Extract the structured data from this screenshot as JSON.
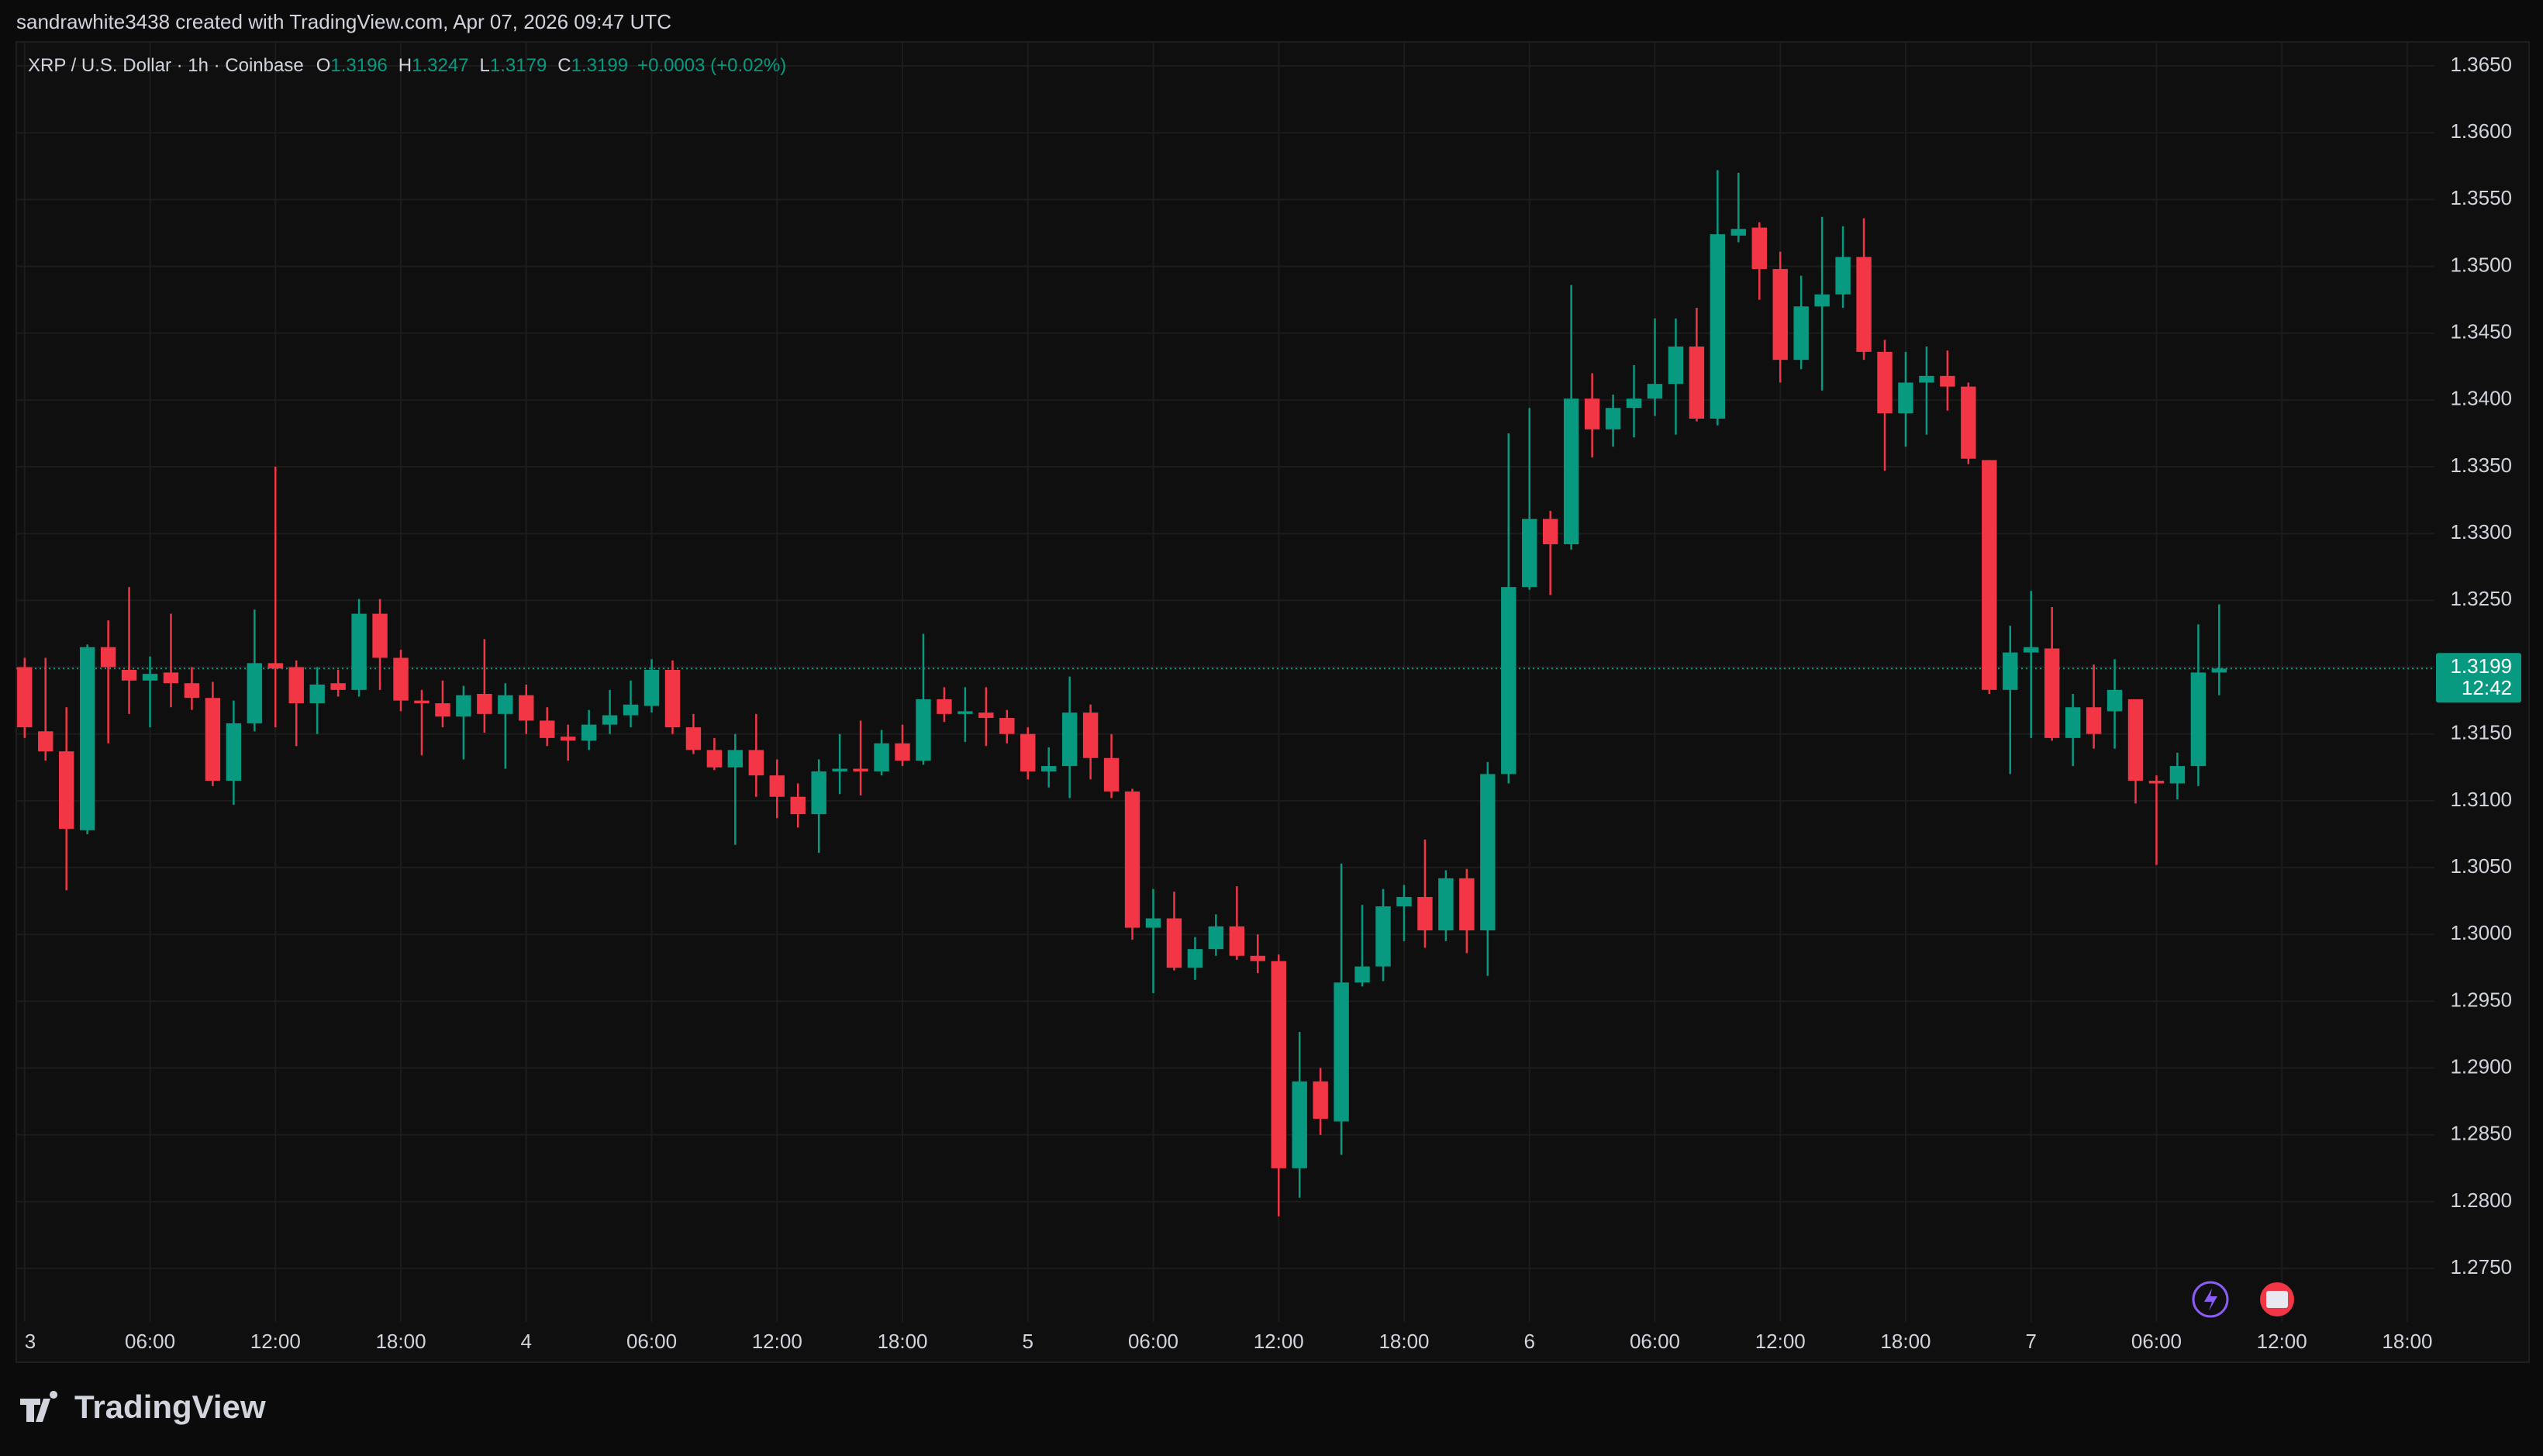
{
  "header": {
    "attribution": "sandrawhite3438 created with TradingView.com, Apr 07, 2026 09:47 UTC"
  },
  "footer": {
    "logo": "TradingView"
  },
  "chart_data": {
    "type": "candlestick",
    "title": "XRP / U.S. Dollar · 1h · Coinbase",
    "legend_items": [
      {
        "key": "O",
        "value": "1.3196"
      },
      {
        "key": "H",
        "value": "1.3247"
      },
      {
        "key": "L",
        "value": "1.3179"
      },
      {
        "key": "C",
        "value": "1.3199"
      }
    ],
    "change": "+0.0003 (+0.02%)",
    "up_color": "#089981",
    "down_color": "#f23645",
    "grid": true,
    "last_price": {
      "value": 1.3199,
      "label": "1.3199",
      "countdown": "12:42"
    },
    "x": [
      0,
      1,
      2,
      3,
      4,
      5,
      6,
      7,
      8,
      9,
      10,
      11,
      12,
      13,
      14,
      15,
      16,
      17,
      18,
      19,
      20,
      21,
      22,
      23,
      24,
      25,
      26,
      27,
      28,
      29,
      30,
      31,
      32,
      33,
      34,
      35,
      36,
      37,
      38,
      39,
      40,
      41,
      42,
      43,
      44,
      45,
      46,
      47,
      48,
      49,
      50,
      51,
      52,
      53,
      54,
      55,
      56,
      57,
      58,
      59,
      60,
      61,
      62,
      63,
      64,
      65,
      66,
      67,
      68,
      69,
      70,
      71,
      72,
      73,
      74,
      75,
      76,
      77,
      78,
      79,
      80,
      81,
      82,
      83,
      84,
      85,
      86,
      87,
      88,
      89,
      90,
      91,
      92,
      93,
      94,
      95,
      96,
      97,
      98,
      99,
      100,
      101,
      102,
      103,
      104,
      105
    ],
    "open": [
      1.32,
      1.3152,
      1.3137,
      1.3078,
      1.3215,
      1.3198,
      1.319,
      1.3196,
      1.3188,
      1.3177,
      1.3115,
      1.3158,
      1.3203,
      1.32,
      1.3173,
      1.3188,
      1.3183,
      1.324,
      1.3207,
      1.3175,
      1.3173,
      1.3163,
      1.318,
      1.3165,
      1.3179,
      1.316,
      1.3148,
      1.3145,
      1.3157,
      1.3164,
      1.3171,
      1.3198,
      1.3155,
      1.3138,
      1.3125,
      1.3138,
      1.3119,
      1.3103,
      1.309,
      1.3122,
      1.3124,
      1.3122,
      1.3143,
      1.313,
      1.3176,
      1.3165,
      1.3166,
      1.3162,
      1.315,
      1.3122,
      1.3126,
      1.3166,
      1.3132,
      1.3107,
      1.3005,
      1.3012,
      1.2975,
      1.2989,
      1.3006,
      1.2984,
      1.298,
      1.2825,
      1.289,
      1.286,
      1.2964,
      1.2976,
      1.3021,
      1.3028,
      1.3003,
      1.3042,
      1.3003,
      1.312,
      1.326,
      1.3311,
      1.3292,
      1.3401,
      1.3378,
      1.3394,
      1.3401,
      1.3412,
      1.344,
      1.3386,
      1.3523,
      1.3529,
      1.3498,
      1.343,
      1.347,
      1.3479,
      1.3507,
      1.3436,
      1.339,
      1.3413,
      1.3418,
      1.341,
      1.3355,
      1.3183,
      1.3211,
      1.3214,
      1.3147,
      1.317,
      1.3167,
      1.3176,
      1.3115,
      1.3113,
      1.3126,
      1.3196
    ],
    "high": [
      1.3207,
      1.3207,
      1.317,
      1.3217,
      1.3235,
      1.326,
      1.3208,
      1.324,
      1.32,
      1.3189,
      1.3175,
      1.3243,
      1.335,
      1.3205,
      1.32,
      1.3198,
      1.3251,
      1.3251,
      1.3213,
      1.3183,
      1.319,
      1.3186,
      1.3221,
      1.3188,
      1.3187,
      1.317,
      1.3157,
      1.3168,
      1.3183,
      1.319,
      1.3206,
      1.3205,
      1.3165,
      1.3147,
      1.315,
      1.3165,
      1.3131,
      1.3113,
      1.3131,
      1.315,
      1.316,
      1.3153,
      1.3157,
      1.3225,
      1.3185,
      1.3185,
      1.3185,
      1.3168,
      1.3155,
      1.314,
      1.3193,
      1.3172,
      1.315,
      1.3109,
      1.3034,
      1.3032,
      1.2998,
      1.3015,
      1.3036,
      1.3,
      1.2985,
      1.2927,
      1.29,
      1.3053,
      1.3022,
      1.3034,
      1.3037,
      1.3071,
      1.3048,
      1.3049,
      1.3129,
      1.3375,
      1.3394,
      1.3317,
      1.3486,
      1.342,
      1.3404,
      1.3426,
      1.3461,
      1.3461,
      1.3469,
      1.3572,
      1.357,
      1.3533,
      1.3511,
      1.3493,
      1.3537,
      1.353,
      1.3536,
      1.3445,
      1.3436,
      1.344,
      1.3437,
      1.3413,
      1.3355,
      1.3231,
      1.3257,
      1.3245,
      1.318,
      1.3202,
      1.3206,
      1.3176,
      1.3119,
      1.3136,
      1.3232,
      1.3247
    ],
    "low": [
      1.3147,
      1.313,
      1.3033,
      1.3075,
      1.3143,
      1.3165,
      1.3155,
      1.317,
      1.3168,
      1.3111,
      1.3097,
      1.3152,
      1.3155,
      1.3141,
      1.315,
      1.3178,
      1.3178,
      1.3183,
      1.3167,
      1.3134,
      1.3155,
      1.3131,
      1.3151,
      1.3124,
      1.315,
      1.3141,
      1.313,
      1.3138,
      1.315,
      1.3155,
      1.3166,
      1.315,
      1.3135,
      1.3123,
      1.3067,
      1.3103,
      1.3087,
      1.308,
      1.3061,
      1.3105,
      1.3104,
      1.3119,
      1.3126,
      1.3127,
      1.3159,
      1.3144,
      1.3141,
      1.3143,
      1.3116,
      1.311,
      1.3102,
      1.3116,
      1.3102,
      1.2996,
      1.2956,
      1.2973,
      1.2966,
      1.2984,
      1.2981,
      1.2971,
      1.2789,
      1.2803,
      1.285,
      1.2835,
      1.2961,
      1.2965,
      1.2995,
      1.299,
      1.2995,
      1.2986,
      1.2969,
      1.3113,
      1.3258,
      1.3254,
      1.3288,
      1.3357,
      1.3365,
      1.3372,
      1.3388,
      1.3374,
      1.3384,
      1.3381,
      1.3518,
      1.3475,
      1.3413,
      1.3423,
      1.3407,
      1.3469,
      1.343,
      1.3347,
      1.3365,
      1.3374,
      1.3392,
      1.3352,
      1.318,
      1.312,
      1.3147,
      1.3145,
      1.3126,
      1.3139,
      1.3139,
      1.3098,
      1.3052,
      1.3101,
      1.3111,
      1.3179
    ],
    "close": [
      1.3155,
      1.3137,
      1.3079,
      1.3215,
      1.32,
      1.319,
      1.3195,
      1.3188,
      1.3177,
      1.3115,
      1.3158,
      1.3203,
      1.3199,
      1.3173,
      1.3187,
      1.3183,
      1.324,
      1.3207,
      1.3175,
      1.3173,
      1.3163,
      1.3179,
      1.3165,
      1.3179,
      1.316,
      1.3147,
      1.3145,
      1.3157,
      1.3164,
      1.3172,
      1.3198,
      1.3155,
      1.3138,
      1.3125,
      1.3138,
      1.3119,
      1.3103,
      1.309,
      1.3122,
      1.3124,
      1.3122,
      1.3143,
      1.313,
      1.3176,
      1.3165,
      1.3167,
      1.3162,
      1.315,
      1.3122,
      1.3126,
      1.3166,
      1.3132,
      1.3107,
      1.3005,
      1.3012,
      1.2975,
      1.2989,
      1.3006,
      1.2984,
      1.298,
      1.2825,
      1.289,
      1.2862,
      1.2964,
      1.2976,
      1.3021,
      1.3028,
      1.3003,
      1.3042,
      1.3003,
      1.312,
      1.326,
      1.3311,
      1.3292,
      1.3401,
      1.3378,
      1.3394,
      1.3401,
      1.3412,
      1.344,
      1.3386,
      1.3524,
      1.3528,
      1.3498,
      1.343,
      1.347,
      1.3479,
      1.3507,
      1.3436,
      1.339,
      1.3413,
      1.3418,
      1.341,
      1.3356,
      1.3183,
      1.3211,
      1.3215,
      1.3147,
      1.317,
      1.315,
      1.3183,
      1.3115,
      1.3113,
      1.3126,
      1.3196,
      1.3199
    ],
    "xlim": [
      -0.4,
      115.3
    ],
    "xticks": [
      {
        "value": 0,
        "label": "3"
      },
      {
        "value": 6,
        "label": "06:00"
      },
      {
        "value": 12,
        "label": "12:00"
      },
      {
        "value": 18,
        "label": "18:00"
      },
      {
        "value": 24,
        "label": "4"
      },
      {
        "value": 30,
        "label": "06:00"
      },
      {
        "value": 36,
        "label": "12:00"
      },
      {
        "value": 42,
        "label": "18:00"
      },
      {
        "value": 48,
        "label": "5"
      },
      {
        "value": 54,
        "label": "06:00"
      },
      {
        "value": 60,
        "label": "12:00"
      },
      {
        "value": 66,
        "label": "18:00"
      },
      {
        "value": 72,
        "label": "6"
      },
      {
        "value": 78,
        "label": "06:00"
      },
      {
        "value": 84,
        "label": "12:00"
      },
      {
        "value": 90,
        "label": "18:00"
      },
      {
        "value": 96,
        "label": "7"
      },
      {
        "value": 102,
        "label": "06:00"
      },
      {
        "value": 108,
        "label": "12:00"
      },
      {
        "value": 114,
        "label": "18:00"
      }
    ],
    "ylim": [
      1.271,
      1.3668
    ],
    "yticks": [
      {
        "value": 1.275,
        "label": "1.2750"
      },
      {
        "value": 1.28,
        "label": "1.2800"
      },
      {
        "value": 1.285,
        "label": "1.2850"
      },
      {
        "value": 1.29,
        "label": "1.2900"
      },
      {
        "value": 1.295,
        "label": "1.2950"
      },
      {
        "value": 1.3,
        "label": "1.3000"
      },
      {
        "value": 1.305,
        "label": "1.3050"
      },
      {
        "value": 1.31,
        "label": "1.3100"
      },
      {
        "value": 1.315,
        "label": "1.3150"
      },
      {
        "value": 1.32,
        "label": "1.3200"
      },
      {
        "value": 1.325,
        "label": "1.3250"
      },
      {
        "value": 1.33,
        "label": "1.3300"
      },
      {
        "value": 1.335,
        "label": "1.3350"
      },
      {
        "value": 1.34,
        "label": "1.3400"
      },
      {
        "value": 1.345,
        "label": "1.3450"
      },
      {
        "value": 1.35,
        "label": "1.3500"
      },
      {
        "value": 1.355,
        "label": "1.3550"
      },
      {
        "value": 1.36,
        "label": "1.3600"
      },
      {
        "value": 1.365,
        "label": "1.3650"
      }
    ]
  }
}
